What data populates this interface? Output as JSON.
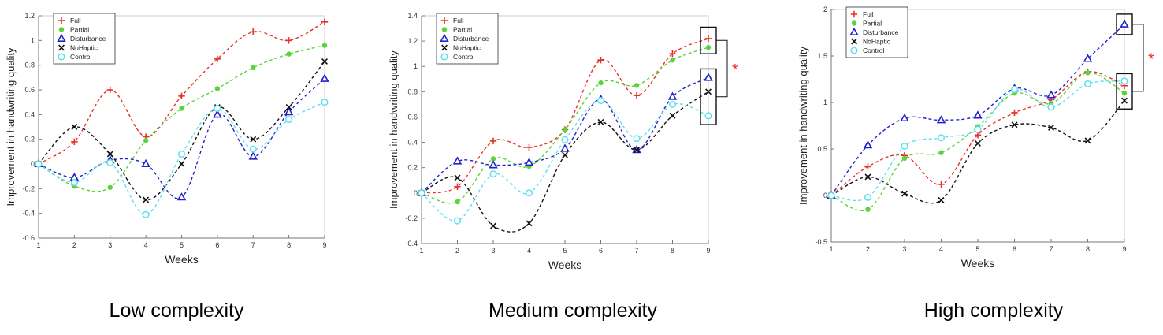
{
  "chart_data": [
    {
      "type": "line",
      "caption": "Low complexity",
      "xlabel": "Weeks",
      "ylabel": "Improvement in handwriting quality",
      "x": [
        1,
        2,
        3,
        4,
        5,
        6,
        7,
        8,
        9
      ],
      "xlim": [
        1,
        9
      ],
      "ylim": [
        -0.6,
        1.2
      ],
      "yticks": [
        -0.6,
        -0.4,
        -0.2,
        0,
        0.2,
        0.4,
        0.6,
        0.8,
        1,
        1.2
      ],
      "ytick_labels": [
        "-0.6",
        "-0.4",
        "-0.2",
        "0",
        "0.2",
        "0.4",
        "0.6",
        "0.8",
        "1",
        "1.2"
      ],
      "grid": false,
      "legend_position": "top-left",
      "series": [
        {
          "name": "Full",
          "marker": "plus",
          "color": "#e8312a",
          "values": [
            0,
            0.18,
            0.6,
            0.22,
            0.55,
            0.85,
            1.07,
            1.0,
            1.15
          ]
        },
        {
          "name": "Partial",
          "marker": "dot",
          "color": "#5ad43a",
          "values": [
            0,
            -0.18,
            -0.19,
            0.19,
            0.45,
            0.61,
            0.78,
            0.89,
            0.96
          ]
        },
        {
          "name": "Disturbance",
          "marker": "triangle",
          "color": "#2222cc",
          "values": [
            0,
            -0.11,
            0.03,
            0.0,
            -0.27,
            0.4,
            0.06,
            0.42,
            0.69
          ]
        },
        {
          "name": "NoHaptic",
          "marker": "x",
          "color": "#111111",
          "values": [
            0,
            0.3,
            0.08,
            -0.29,
            0.0,
            0.46,
            0.2,
            0.46,
            0.83
          ]
        },
        {
          "name": "Control",
          "marker": "circle",
          "color": "#5ee0ee",
          "values": [
            0,
            -0.15,
            0.01,
            -0.41,
            0.08,
            0.45,
            0.12,
            0.36,
            0.5
          ]
        }
      ],
      "significance": null
    },
    {
      "type": "line",
      "caption": "Medium complexity",
      "xlabel": "Weeks",
      "ylabel": "Improvement in handwriting quality",
      "x": [
        1,
        2,
        3,
        4,
        5,
        6,
        7,
        8,
        9
      ],
      "xlim": [
        1,
        9
      ],
      "ylim": [
        -0.4,
        1.4
      ],
      "yticks": [
        -0.4,
        -0.2,
        0,
        0.2,
        0.4,
        0.6,
        0.8,
        1,
        1.2,
        1.4
      ],
      "ytick_labels": [
        "-0.4",
        "-0.2",
        "0",
        "0.2",
        "0.4",
        "0.6",
        "0.8",
        "1",
        "1.2",
        "1.4"
      ],
      "grid": false,
      "legend_position": "top-left",
      "series": [
        {
          "name": "Full",
          "marker": "plus",
          "color": "#e8312a",
          "values": [
            0,
            0.05,
            0.41,
            0.36,
            0.5,
            1.05,
            0.77,
            1.1,
            1.22
          ]
        },
        {
          "name": "Partial",
          "marker": "dot",
          "color": "#5ad43a",
          "values": [
            0,
            -0.07,
            0.27,
            0.21,
            0.5,
            0.87,
            0.85,
            1.05,
            1.15
          ]
        },
        {
          "name": "Disturbance",
          "marker": "triangle",
          "color": "#2222cc",
          "values": [
            0,
            0.25,
            0.22,
            0.24,
            0.35,
            0.74,
            0.34,
            0.76,
            0.91
          ]
        },
        {
          "name": "NoHaptic",
          "marker": "x",
          "color": "#111111",
          "values": [
            0,
            0.12,
            -0.26,
            -0.24,
            0.3,
            0.56,
            0.34,
            0.61,
            0.8
          ]
        },
        {
          "name": "Control",
          "marker": "circle",
          "color": "#5ee0ee",
          "values": [
            0,
            -0.22,
            0.15,
            0.0,
            0.42,
            0.73,
            0.43,
            0.7,
            0.61
          ]
        }
      ],
      "significance": {
        "x": 9,
        "groups": [
          [
            1.1,
            1.31
          ],
          [
            0.54,
            0.98
          ]
        ],
        "label": "*"
      }
    },
    {
      "type": "line",
      "caption": "High complexity",
      "xlabel": "Weeks",
      "ylabel": "Improvement in handwriting quality",
      "x": [
        1,
        2,
        3,
        4,
        5,
        6,
        7,
        8,
        9
      ],
      "xlim": [
        1,
        9
      ],
      "ylim": [
        -0.5,
        2
      ],
      "yticks": [
        -0.5,
        0,
        0.5,
        1,
        1.5,
        2
      ],
      "ytick_labels": [
        "-0.5",
        "0",
        "0.5",
        "1",
        "1.5",
        "2"
      ],
      "grid": false,
      "legend_position": "top-left",
      "series": [
        {
          "name": "Full",
          "marker": "plus",
          "color": "#e8312a",
          "values": [
            0,
            0.31,
            0.43,
            0.12,
            0.65,
            0.89,
            1.03,
            1.33,
            1.18
          ]
        },
        {
          "name": "Partial",
          "marker": "dot",
          "color": "#5ad43a",
          "values": [
            0,
            -0.15,
            0.4,
            0.46,
            0.74,
            1.1,
            0.99,
            1.32,
            1.1
          ]
        },
        {
          "name": "Disturbance",
          "marker": "triangle",
          "color": "#2222cc",
          "values": [
            0,
            0.54,
            0.83,
            0.81,
            0.86,
            1.15,
            1.08,
            1.47,
            1.84
          ]
        },
        {
          "name": "NoHaptic",
          "marker": "x",
          "color": "#111111",
          "values": [
            0,
            0.2,
            0.02,
            -0.05,
            0.56,
            0.76,
            0.73,
            0.59,
            1.02
          ]
        },
        {
          "name": "Control",
          "marker": "circle",
          "color": "#5ee0ee",
          "values": [
            0,
            -0.02,
            0.53,
            0.62,
            0.71,
            1.14,
            0.95,
            1.2,
            1.23
          ]
        }
      ],
      "significance": {
        "x": 9,
        "groups": [
          [
            1.73,
            1.95
          ],
          [
            0.93,
            1.31
          ]
        ],
        "label": "*"
      }
    }
  ]
}
